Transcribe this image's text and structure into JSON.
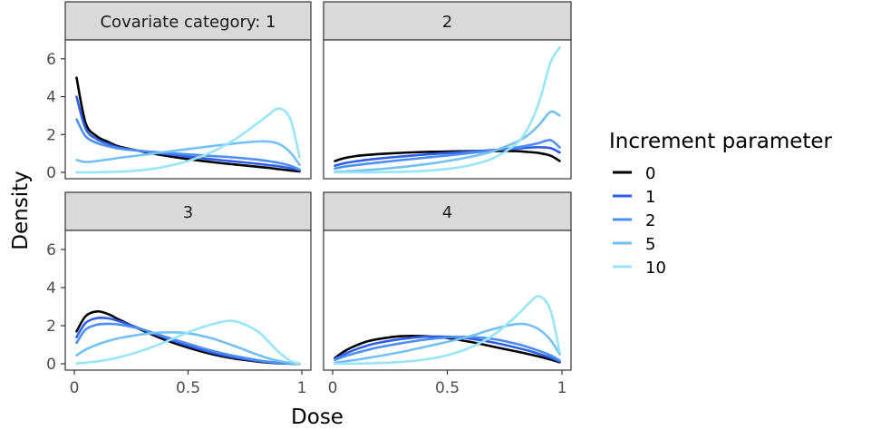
{
  "chart_data": {
    "type": "line",
    "xlabel": "Dose",
    "ylabel": "Density",
    "xlim": [
      0,
      1
    ],
    "ylim": [
      0,
      7
    ],
    "x_ticks": [
      "0",
      "0.5",
      "1"
    ],
    "x_tick_values": [
      0,
      0.5,
      1
    ],
    "y_ticks": [
      "0",
      "2",
      "4",
      "6"
    ],
    "y_tick_values": [
      0,
      2,
      4,
      6
    ],
    "grid": false,
    "legend": {
      "title": "Increment parameter",
      "position": "right",
      "entries": [
        "0",
        "1",
        "2",
        "5",
        "10"
      ]
    },
    "series_colors": {
      "0": "#000000",
      "1": "#2f5ee8",
      "2": "#4d8ff0",
      "5": "#74c0f5",
      "10": "#98e5fa"
    },
    "x": [
      0.01,
      0.05,
      0.1,
      0.15,
      0.2,
      0.3,
      0.4,
      0.5,
      0.6,
      0.7,
      0.8,
      0.85,
      0.9,
      0.95,
      0.99
    ],
    "panels": [
      {
        "strip": "Covariate category: 1",
        "series": [
          {
            "name": "0",
            "values": [
              5.0,
              2.6,
              1.9,
              1.6,
              1.35,
              1.1,
              0.88,
              0.7,
              0.55,
              0.42,
              0.3,
              0.24,
              0.17,
              0.1,
              0.05
            ]
          },
          {
            "name": "1",
            "values": [
              4.0,
              2.3,
              1.75,
              1.5,
              1.3,
              1.12,
              0.97,
              0.83,
              0.7,
              0.58,
              0.46,
              0.39,
              0.32,
              0.22,
              0.12
            ]
          },
          {
            "name": "2",
            "values": [
              2.8,
              1.9,
              1.55,
              1.38,
              1.25,
              1.12,
              1.03,
              0.95,
              0.87,
              0.79,
              0.68,
              0.6,
              0.5,
              0.35,
              0.15
            ]
          },
          {
            "name": "5",
            "values": [
              0.65,
              0.55,
              0.6,
              0.68,
              0.77,
              0.92,
              1.08,
              1.23,
              1.38,
              1.52,
              1.63,
              1.63,
              1.5,
              1.05,
              0.4
            ]
          },
          {
            "name": "10",
            "values": [
              0.0,
              0.0,
              0.01,
              0.02,
              0.04,
              0.12,
              0.3,
              0.6,
              1.05,
              1.7,
              2.55,
              3.0,
              3.38,
              2.8,
              0.8
            ]
          }
        ]
      },
      {
        "strip": "2",
        "series": [
          {
            "name": "0",
            "values": [
              0.6,
              0.75,
              0.86,
              0.92,
              0.97,
              1.03,
              1.08,
              1.1,
              1.12,
              1.13,
              1.12,
              1.08,
              1.02,
              0.88,
              0.6
            ]
          },
          {
            "name": "1",
            "values": [
              0.35,
              0.48,
              0.58,
              0.66,
              0.73,
              0.84,
              0.94,
              1.02,
              1.1,
              1.18,
              1.26,
              1.3,
              1.33,
              1.28,
              1.05
            ]
          },
          {
            "name": "2",
            "values": [
              0.2,
              0.3,
              0.38,
              0.45,
              0.52,
              0.65,
              0.77,
              0.89,
              1.02,
              1.16,
              1.32,
              1.42,
              1.55,
              1.7,
              1.32
            ]
          },
          {
            "name": "5",
            "values": [
              0.03,
              0.05,
              0.08,
              0.12,
              0.17,
              0.28,
              0.42,
              0.6,
              0.82,
              1.12,
              1.6,
              1.95,
              2.5,
              3.2,
              3.0
            ]
          },
          {
            "name": "10",
            "values": [
              0.0,
              0.0,
              0.0,
              0.0,
              0.01,
              0.03,
              0.08,
              0.18,
              0.38,
              0.75,
              1.5,
              2.3,
              3.7,
              5.8,
              6.6
            ]
          }
        ]
      },
      {
        "strip": "3",
        "series": [
          {
            "name": "0",
            "values": [
              1.7,
              2.5,
              2.75,
              2.6,
              2.3,
              1.75,
              1.25,
              0.85,
              0.52,
              0.28,
              0.12,
              0.06,
              0.03,
              0.01,
              0.0
            ]
          },
          {
            "name": "1",
            "values": [
              1.4,
              2.15,
              2.4,
              2.38,
              2.22,
              1.8,
              1.35,
              0.95,
              0.6,
              0.34,
              0.15,
              0.08,
              0.04,
              0.01,
              0.0
            ]
          },
          {
            "name": "2",
            "values": [
              1.1,
              1.8,
              2.05,
              2.1,
              2.05,
              1.8,
              1.42,
              1.05,
              0.7,
              0.42,
              0.2,
              0.11,
              0.05,
              0.01,
              0.0
            ]
          },
          {
            "name": "5",
            "values": [
              0.45,
              0.75,
              1.0,
              1.2,
              1.35,
              1.55,
              1.65,
              1.6,
              1.35,
              0.95,
              0.5,
              0.3,
              0.15,
              0.04,
              0.0
            ]
          },
          {
            "name": "10",
            "values": [
              0.02,
              0.06,
              0.12,
              0.22,
              0.35,
              0.7,
              1.15,
              1.65,
              2.05,
              2.25,
              1.75,
              1.2,
              0.6,
              0.15,
              0.01
            ]
          }
        ]
      },
      {
        "strip": "4",
        "series": [
          {
            "name": "0",
            "values": [
              0.3,
              0.65,
              0.95,
              1.17,
              1.3,
              1.45,
              1.45,
              1.35,
              1.15,
              0.9,
              0.65,
              0.52,
              0.38,
              0.22,
              0.08
            ]
          },
          {
            "name": "1",
            "values": [
              0.25,
              0.5,
              0.75,
              0.95,
              1.1,
              1.3,
              1.42,
              1.42,
              1.32,
              1.12,
              0.85,
              0.7,
              0.52,
              0.32,
              0.12
            ]
          },
          {
            "name": "2",
            "values": [
              0.2,
              0.38,
              0.56,
              0.72,
              0.86,
              1.08,
              1.26,
              1.38,
              1.4,
              1.3,
              1.05,
              0.88,
              0.68,
              0.45,
              0.18
            ]
          },
          {
            "name": "5",
            "values": [
              0.05,
              0.12,
              0.2,
              0.3,
              0.4,
              0.62,
              0.88,
              1.15,
              1.45,
              1.82,
              2.08,
              2.05,
              1.8,
              1.25,
              0.5
            ]
          },
          {
            "name": "10",
            "values": [
              0.0,
              0.0,
              0.01,
              0.02,
              0.04,
              0.1,
              0.22,
              0.45,
              0.85,
              1.5,
              2.5,
              3.1,
              3.55,
              2.8,
              0.6
            ]
          }
        ]
      }
    ]
  }
}
